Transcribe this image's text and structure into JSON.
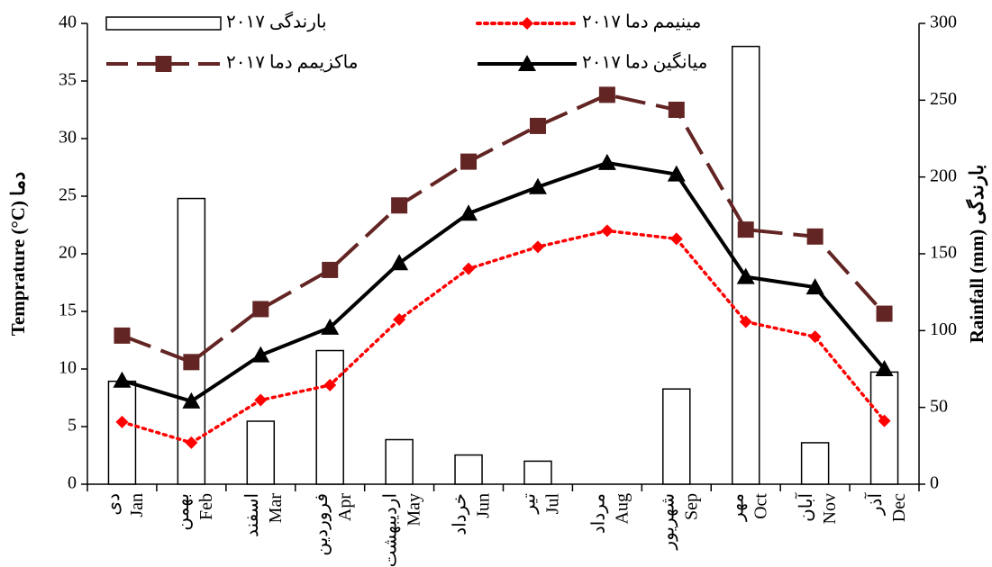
{
  "chart_data": {
    "type": "combo",
    "y_label": "Temprature (°C) دما",
    "y2_label": "Rainfall (mm) بارندگی",
    "categories": [
      "Jan",
      "Feb",
      "Mar",
      "Apr",
      "May",
      "Jun",
      "Jul",
      "Aug",
      "Sep",
      "Oct",
      "Nov",
      "Dec"
    ],
    "categories_fa": [
      "دی",
      "بهمن",
      "اسفند",
      "فروردین",
      "اردیبهشت",
      "خرداد",
      "تیر",
      "مرداد",
      "شهریور",
      "مهر",
      "آبان",
      "آذر"
    ],
    "ylim": [
      0,
      40
    ],
    "yticks": [
      0,
      5,
      10,
      15,
      20,
      25,
      30,
      35,
      40
    ],
    "y2lim": [
      0,
      300
    ],
    "y2ticks": [
      0,
      50,
      100,
      150,
      200,
      250,
      300
    ],
    "series": [
      {
        "name": "بارندگی ۲۰۱۷",
        "type": "bar",
        "axis": "y2",
        "color": "#ffffff",
        "values": [
          67,
          186,
          41,
          87,
          29,
          19,
          15,
          0,
          62,
          285,
          27,
          73
        ]
      },
      {
        "name": "مینیمم دما ۲۰۱۷",
        "type": "line",
        "color": "#ff0000",
        "line_style": "dotted",
        "marker": "diamond",
        "values": [
          5.4,
          3.6,
          7.3,
          8.6,
          14.3,
          18.7,
          20.6,
          22.0,
          21.3,
          14.1,
          12.8,
          5.5
        ]
      },
      {
        "name": "ماکزیمم دما ۲۰۱۷",
        "type": "line",
        "color": "#632523",
        "line_style": "dashed",
        "marker": "square",
        "values": [
          12.9,
          10.6,
          15.2,
          18.6,
          24.2,
          28.0,
          31.1,
          33.8,
          32.5,
          22.1,
          21.5,
          14.8
        ]
      },
      {
        "name": "میانگین دما ۲۰۱۷",
        "type": "line",
        "color": "#000000",
        "line_style": "solid",
        "marker": "triangle",
        "values": [
          9.0,
          7.2,
          11.2,
          13.6,
          19.2,
          23.5,
          25.8,
          27.9,
          26.9,
          18.0,
          17.1,
          10.0
        ]
      }
    ]
  }
}
